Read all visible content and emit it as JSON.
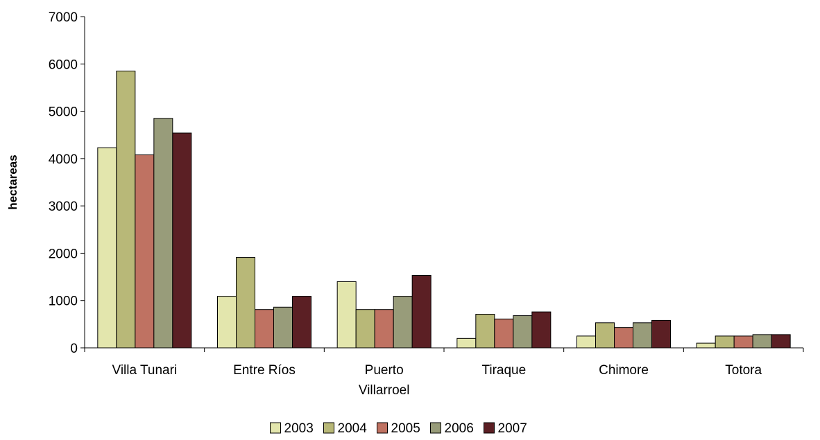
{
  "chart_data": {
    "type": "bar",
    "title": "",
    "xlabel": "",
    "ylabel": "hectareas",
    "ylim": [
      0,
      7000
    ],
    "yticks": [
      0,
      1000,
      2000,
      3000,
      4000,
      5000,
      6000,
      7000
    ],
    "grid": false,
    "legend_position": "bottom",
    "categories": [
      [
        "Villa Tunari"
      ],
      [
        "Entre Ríos"
      ],
      [
        "Puerto",
        "Villarroel"
      ],
      [
        "Tiraque"
      ],
      [
        "Chimore"
      ],
      [
        "Totora"
      ]
    ],
    "series": [
      {
        "name": "2003",
        "color": "#e3e6ad",
        "values": [
          4230,
          1090,
          1400,
          200,
          250,
          100
        ]
      },
      {
        "name": "2004",
        "color": "#b8b878",
        "values": [
          5850,
          1910,
          810,
          710,
          530,
          250
        ]
      },
      {
        "name": "2005",
        "color": "#bf7262",
        "values": [
          4080,
          810,
          810,
          610,
          430,
          250
        ]
      },
      {
        "name": "2006",
        "color": "#989c7a",
        "values": [
          4850,
          860,
          1090,
          680,
          530,
          280
        ]
      },
      {
        "name": "2007",
        "color": "#5b1f24",
        "values": [
          4540,
          1090,
          1530,
          760,
          580,
          280
        ]
      }
    ]
  }
}
